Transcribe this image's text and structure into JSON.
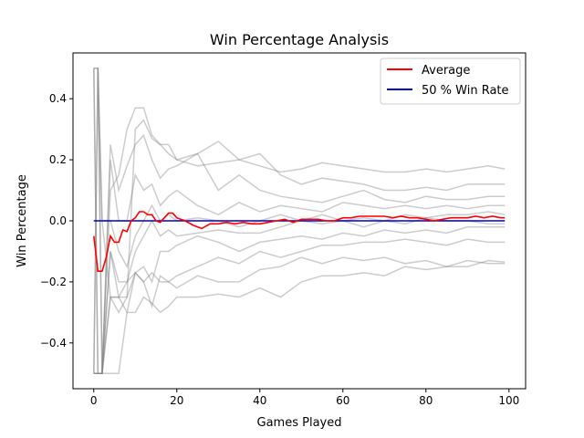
{
  "chart_data": {
    "type": "line",
    "title": "Win Percentage Analysis",
    "xlabel": "Games Played",
    "ylabel": "Win Percentage",
    "xlim": [
      -5,
      104
    ],
    "ylim": [
      -0.55,
      0.55
    ],
    "xticks": [
      0,
      20,
      40,
      60,
      80,
      100
    ],
    "xtick_labels": [
      "0",
      "20",
      "40",
      "60",
      "80",
      "100"
    ],
    "yticks": [
      -0.4,
      -0.2,
      0.0,
      0.2,
      0.4
    ],
    "ytick_labels": [
      "−0.4",
      "−0.2",
      "0.0",
      "0.2",
      "0.4"
    ],
    "grid": false,
    "legend_position": "top-right",
    "colors": {
      "average": "#ff0000",
      "baseline": "#0000cc",
      "trials": "#808080"
    },
    "series": [
      {
        "name": "Average",
        "color": "#ff0000",
        "x": [
          0,
          1,
          2,
          3,
          4,
          5,
          6,
          7,
          8,
          9,
          10,
          11,
          12,
          13,
          14,
          15,
          16,
          17,
          18,
          19,
          20,
          22,
          24,
          26,
          28,
          30,
          32,
          34,
          36,
          38,
          40,
          42,
          44,
          46,
          48,
          50,
          52,
          54,
          56,
          58,
          60,
          62,
          64,
          66,
          68,
          70,
          72,
          74,
          76,
          78,
          80,
          82,
          84,
          86,
          88,
          90,
          92,
          94,
          96,
          98,
          99
        ],
        "y": [
          -0.05,
          -0.165,
          -0.165,
          -0.12,
          -0.05,
          -0.07,
          -0.07,
          -0.03,
          -0.035,
          0.0,
          0.01,
          0.03,
          0.03,
          0.02,
          0.02,
          0.0,
          -0.005,
          0.01,
          0.025,
          0.025,
          0.01,
          0.0,
          -0.015,
          -0.025,
          -0.01,
          -0.01,
          -0.005,
          -0.01,
          -0.005,
          -0.01,
          -0.01,
          -0.005,
          0.0,
          0.005,
          -0.005,
          0.005,
          0.005,
          0.005,
          0.0,
          0.0,
          0.01,
          0.01,
          0.015,
          0.015,
          0.015,
          0.015,
          0.01,
          0.015,
          0.01,
          0.01,
          0.005,
          0.0,
          0.005,
          0.01,
          0.01,
          0.01,
          0.015,
          0.01,
          0.015,
          0.01,
          0.01
        ]
      },
      {
        "name": "50 % Win Rate",
        "color": "#0000cc",
        "x": [
          0,
          99
        ],
        "y": [
          0.0,
          0.0
        ]
      }
    ],
    "trials": [
      {
        "x": [
          0,
          1,
          2,
          4,
          6,
          8,
          10,
          12,
          14,
          16,
          18,
          20,
          25,
          30,
          35,
          40,
          45,
          50,
          55,
          60,
          65,
          70,
          75,
          80,
          85,
          90,
          95,
          99
        ],
        "y": [
          0.5,
          0.5,
          0.0,
          -0.25,
          -0.3,
          -0.25,
          0.3,
          0.33,
          0.27,
          0.25,
          0.22,
          0.2,
          0.18,
          0.19,
          0.2,
          0.18,
          0.16,
          0.17,
          0.19,
          0.18,
          0.17,
          0.16,
          0.16,
          0.17,
          0.16,
          0.17,
          0.18,
          0.17
        ]
      },
      {
        "x": [
          0,
          1,
          2,
          4,
          6,
          8,
          10,
          12,
          14,
          16,
          18,
          20,
          25,
          30,
          35,
          40,
          45,
          50,
          55,
          60,
          65,
          70,
          75,
          80,
          85,
          90,
          95,
          99
        ],
        "y": [
          0.5,
          0.5,
          -0.5,
          0.1,
          0.15,
          0.3,
          0.37,
          0.37,
          0.28,
          0.25,
          0.25,
          0.2,
          0.22,
          0.26,
          0.2,
          0.22,
          0.15,
          0.12,
          0.14,
          0.13,
          0.12,
          0.1,
          0.1,
          0.11,
          0.1,
          0.12,
          0.12,
          0.12
        ]
      },
      {
        "x": [
          0,
          1,
          2,
          4,
          6,
          8,
          10,
          12,
          14,
          16,
          18,
          20,
          25,
          30,
          35,
          40,
          45,
          50,
          55,
          60,
          65,
          70,
          75,
          80,
          85,
          90,
          95,
          99
        ],
        "y": [
          0.5,
          -0.5,
          -0.5,
          0.25,
          0.1,
          0.18,
          0.25,
          0.28,
          0.2,
          0.14,
          0.17,
          0.18,
          0.22,
          0.1,
          0.15,
          0.1,
          0.08,
          0.07,
          0.06,
          0.08,
          0.1,
          0.07,
          0.06,
          0.08,
          0.07,
          0.07,
          0.08,
          0.08
        ]
      },
      {
        "x": [
          0,
          1,
          2,
          4,
          6,
          8,
          10,
          12,
          14,
          16,
          18,
          20,
          25,
          30,
          35,
          40,
          45,
          50,
          55,
          60,
          65,
          70,
          75,
          80,
          85,
          90,
          95,
          99
        ],
        "y": [
          0.5,
          -0.5,
          -0.5,
          0.2,
          0.0,
          0.0,
          0.15,
          0.1,
          0.12,
          0.05,
          0.08,
          0.1,
          0.05,
          0.02,
          0.06,
          0.03,
          0.05,
          0.04,
          0.03,
          0.06,
          0.05,
          0.04,
          0.05,
          0.04,
          0.05,
          0.04,
          0.05,
          0.05
        ]
      },
      {
        "x": [
          0,
          1,
          2,
          4,
          6,
          8,
          10,
          12,
          14,
          16,
          18,
          20,
          25,
          30,
          35,
          40,
          45,
          50,
          55,
          60,
          65,
          70,
          75,
          80,
          85,
          90,
          95,
          99
        ],
        "y": [
          -0.5,
          0.5,
          0.0,
          0.0,
          -0.1,
          -0.15,
          -0.05,
          0.0,
          0.05,
          0.0,
          0.02,
          0.0,
          0.01,
          0.0,
          -0.02,
          0.0,
          0.02,
          0.0,
          0.02,
          0.0,
          0.01,
          0.0,
          0.02,
          0.01,
          0.02,
          0.02,
          0.03,
          0.02
        ]
      },
      {
        "x": [
          0,
          1,
          2,
          4,
          6,
          8,
          10,
          12,
          14,
          16,
          18,
          20,
          25,
          30,
          35,
          40,
          45,
          50,
          55,
          60,
          65,
          70,
          75,
          80,
          85,
          90,
          95,
          99
        ],
        "y": [
          -0.5,
          0.5,
          -0.5,
          -0.1,
          -0.2,
          -0.2,
          -0.1,
          -0.05,
          0.0,
          -0.05,
          -0.03,
          -0.05,
          -0.04,
          -0.03,
          -0.04,
          -0.04,
          -0.02,
          0.0,
          -0.01,
          0.0,
          -0.02,
          0.0,
          -0.01,
          0.01,
          0.0,
          0.0,
          -0.01,
          -0.01
        ]
      },
      {
        "x": [
          0,
          1,
          2,
          4,
          6,
          8,
          10,
          12,
          14,
          16,
          18,
          20,
          25,
          30,
          35,
          40,
          45,
          50,
          55,
          60,
          65,
          70,
          75,
          80,
          85,
          90,
          95,
          99
        ],
        "y": [
          -0.5,
          -0.5,
          -0.5,
          -0.1,
          -0.25,
          -0.2,
          -0.17,
          -0.15,
          -0.2,
          -0.1,
          -0.1,
          -0.08,
          -0.05,
          -0.07,
          -0.1,
          -0.07,
          -0.06,
          -0.05,
          -0.06,
          -0.04,
          -0.05,
          -0.03,
          -0.04,
          -0.03,
          -0.04,
          -0.02,
          -0.02,
          -0.02
        ]
      },
      {
        "x": [
          0,
          1,
          2,
          4,
          6,
          8,
          10,
          12,
          14,
          16,
          18,
          20,
          25,
          30,
          35,
          40,
          45,
          50,
          55,
          60,
          65,
          70,
          75,
          80,
          85,
          90,
          95,
          99
        ],
        "y": [
          -0.5,
          -0.5,
          -0.5,
          -0.25,
          -0.25,
          -0.25,
          -0.17,
          -0.2,
          -0.28,
          -0.18,
          -0.2,
          -0.18,
          -0.15,
          -0.12,
          -0.14,
          -0.1,
          -0.12,
          -0.1,
          -0.08,
          -0.08,
          -0.07,
          -0.07,
          -0.06,
          -0.07,
          -0.08,
          -0.06,
          -0.07,
          -0.07
        ]
      },
      {
        "x": [
          0,
          1,
          2,
          4,
          6,
          8,
          10,
          12,
          14,
          16,
          18,
          20,
          25,
          30,
          35,
          40,
          45,
          50,
          55,
          60,
          65,
          70,
          75,
          80,
          85,
          90,
          95,
          99
        ],
        "y": [
          -0.5,
          -0.5,
          -0.5,
          -0.25,
          -0.25,
          -0.3,
          -0.17,
          -0.2,
          -0.17,
          -0.2,
          -0.2,
          -0.22,
          -0.18,
          -0.2,
          -0.2,
          -0.16,
          -0.15,
          -0.12,
          -0.14,
          -0.12,
          -0.13,
          -0.12,
          -0.14,
          -0.13,
          -0.15,
          -0.13,
          -0.14,
          -0.14
        ]
      },
      {
        "x": [
          0,
          1,
          2,
          4,
          6,
          8,
          10,
          12,
          14,
          16,
          18,
          20,
          25,
          30,
          35,
          40,
          45,
          50,
          55,
          60,
          65,
          70,
          75,
          80,
          85,
          90,
          95,
          99
        ],
        "y": [
          -0.5,
          -0.5,
          -0.5,
          -0.5,
          -0.5,
          -0.3,
          -0.3,
          -0.25,
          -0.27,
          -0.3,
          -0.28,
          -0.25,
          -0.25,
          -0.24,
          -0.25,
          -0.22,
          -0.25,
          -0.2,
          -0.18,
          -0.18,
          -0.17,
          -0.18,
          -0.15,
          -0.16,
          -0.15,
          -0.15,
          -0.13,
          -0.135
        ]
      }
    ]
  }
}
